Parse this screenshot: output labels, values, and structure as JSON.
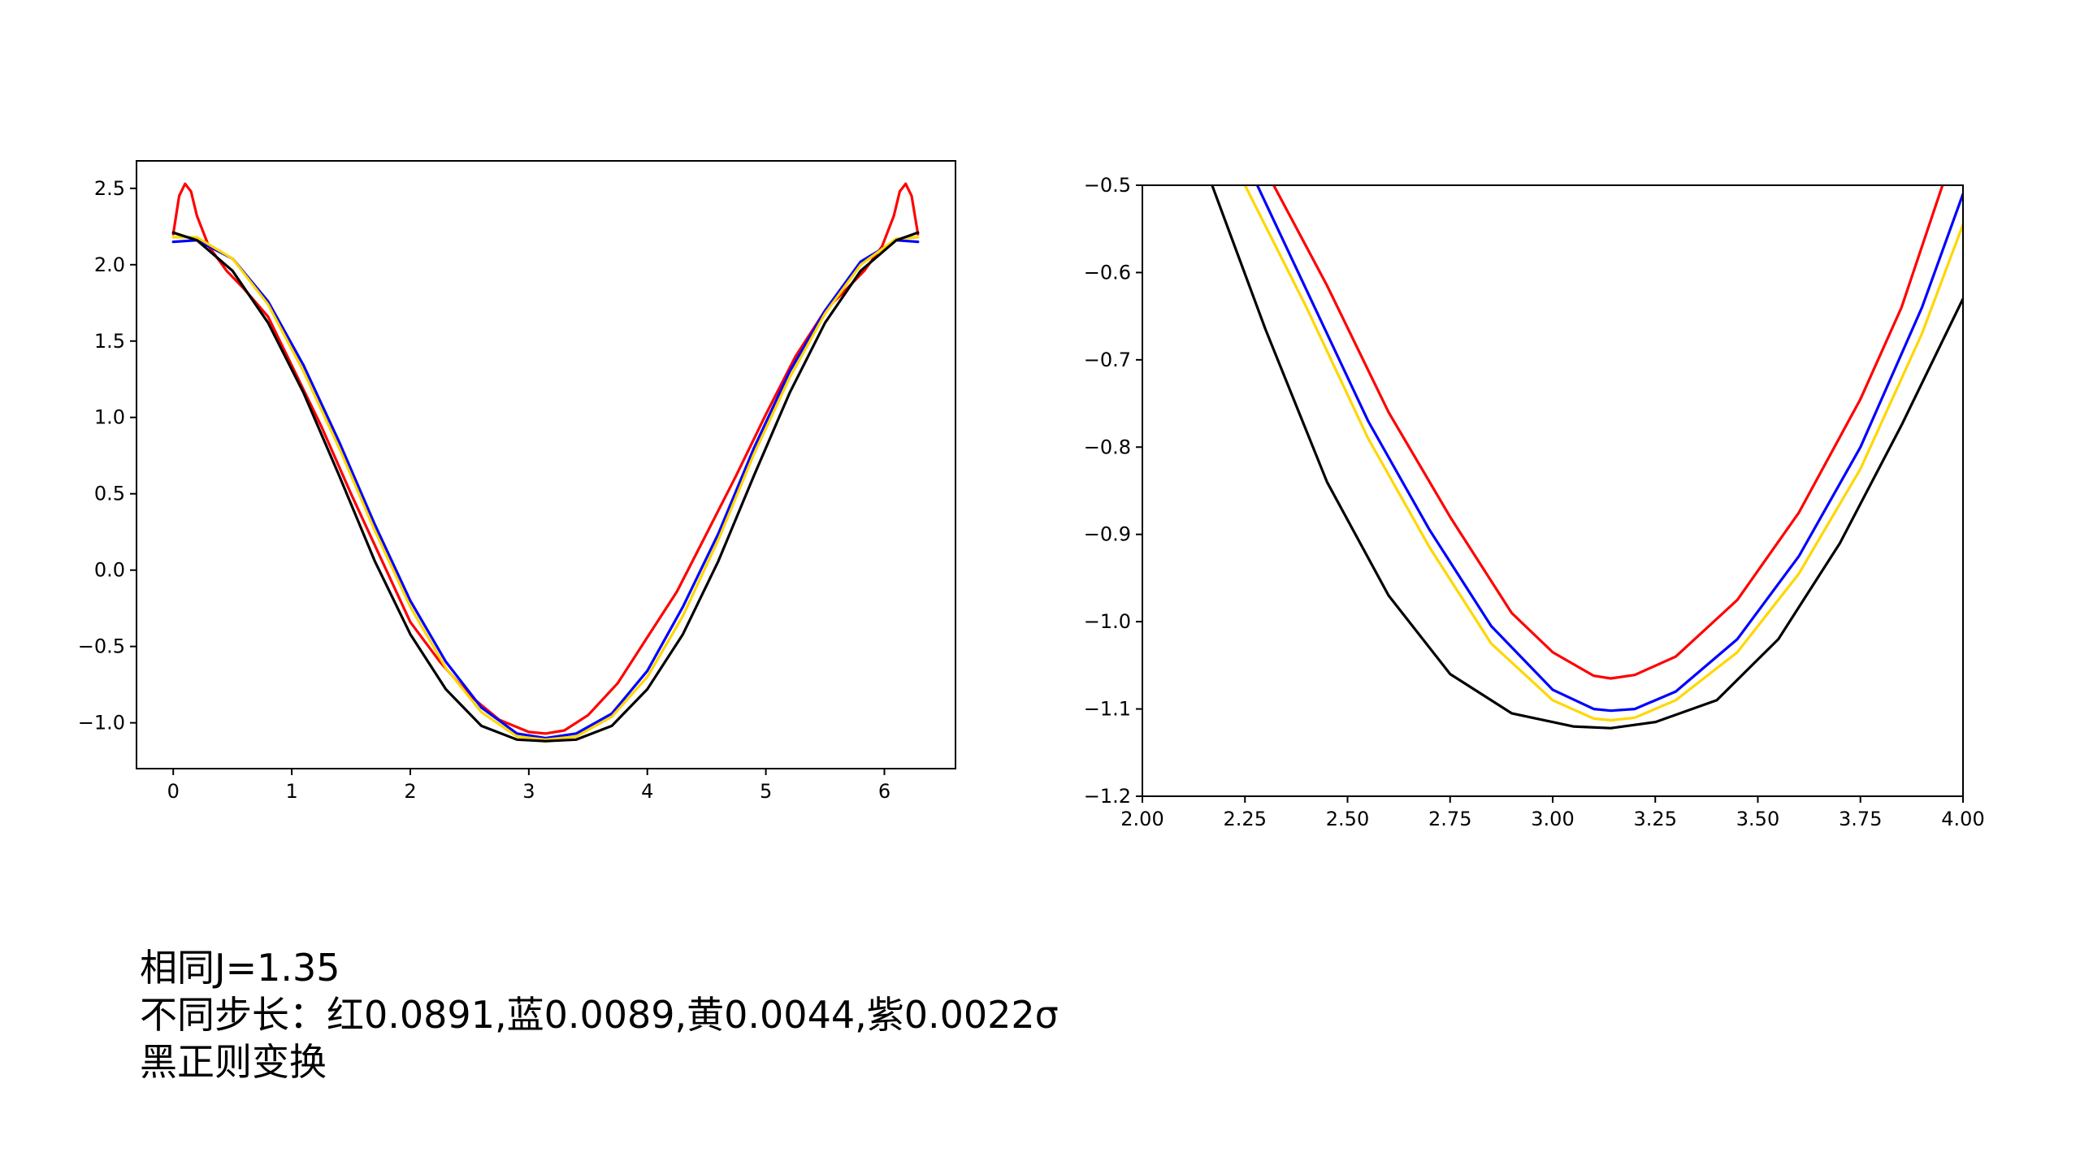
{
  "chart_data": [
    {
      "type": "line",
      "title": "",
      "xlabel": "",
      "ylabel": "",
      "xlim": [
        -0.31,
        6.6
      ],
      "ylim": [
        -1.3,
        2.68
      ],
      "xticks": [
        0,
        1,
        2,
        3,
        4,
        5,
        6
      ],
      "xtick_labels": [
        "0",
        "1",
        "2",
        "3",
        "4",
        "5",
        "6"
      ],
      "yticks": [
        -1.0,
        -0.5,
        0.0,
        0.5,
        1.0,
        1.5,
        2.0,
        2.5
      ],
      "ytick_labels": [
        "−1.0",
        "−0.5",
        "0.0",
        "0.5",
        "1.0",
        "1.5",
        "2.0",
        "2.5"
      ],
      "grid": false,
      "legend": "none",
      "series": [
        {
          "color": "#ff0000",
          "x": [
            0,
            0.05,
            0.1,
            0.15,
            0.2,
            0.3,
            0.45,
            0.6,
            0.8,
            1.0,
            1.25,
            1.5,
            1.75,
            2.0,
            2.25,
            2.5,
            2.75,
            3.0,
            3.1416,
            3.3,
            3.5,
            3.75,
            4.0,
            4.25,
            4.5,
            4.75,
            5.0,
            5.25,
            5.5,
            5.68,
            5.83,
            5.98,
            6.08,
            6.13,
            6.18,
            6.23,
            6.2832
          ],
          "y": [
            2.2,
            2.45,
            2.53,
            2.48,
            2.32,
            2.12,
            1.96,
            1.84,
            1.66,
            1.34,
            0.94,
            0.5,
            0.08,
            -0.34,
            -0.6,
            -0.82,
            -0.98,
            -1.06,
            -1.07,
            -1.05,
            -0.95,
            -0.74,
            -0.44,
            -0.14,
            0.24,
            0.62,
            1.02,
            1.4,
            1.7,
            1.84,
            1.96,
            2.12,
            2.32,
            2.48,
            2.53,
            2.45,
            2.2
          ]
        },
        {
          "color": "#0000ff",
          "x": [
            0,
            0.2,
            0.5,
            0.8,
            1.1,
            1.4,
            1.7,
            2.0,
            2.3,
            2.6,
            2.9,
            3.1416,
            3.4,
            3.7,
            4.0,
            4.3,
            4.6,
            4.9,
            5.2,
            5.5,
            5.8,
            6.1,
            6.2832
          ],
          "y": [
            2.15,
            2.16,
            2.04,
            1.76,
            1.34,
            0.84,
            0.3,
            -0.2,
            -0.6,
            -0.9,
            -1.07,
            -1.1,
            -1.07,
            -0.94,
            -0.66,
            -0.24,
            0.24,
            0.8,
            1.3,
            1.7,
            2.02,
            2.16,
            2.15
          ]
        },
        {
          "color": "#ffd700",
          "x": [
            0,
            0.2,
            0.5,
            0.8,
            1.1,
            1.4,
            1.7,
            2.0,
            2.3,
            2.6,
            2.9,
            3.1416,
            3.4,
            3.7,
            4.0,
            4.3,
            4.6,
            4.9,
            5.2,
            5.5,
            5.8,
            6.1,
            6.2832
          ],
          "y": [
            2.18,
            2.18,
            2.04,
            1.74,
            1.3,
            0.8,
            0.26,
            -0.24,
            -0.64,
            -0.93,
            -1.09,
            -1.11,
            -1.09,
            -0.96,
            -0.7,
            -0.3,
            0.2,
            0.76,
            1.26,
            1.68,
            2.0,
            2.17,
            2.18
          ]
        },
        {
          "color": "#000000",
          "x": [
            0,
            0.2,
            0.5,
            0.8,
            1.1,
            1.4,
            1.7,
            2.0,
            2.3,
            2.6,
            2.9,
            3.1416,
            3.4,
            3.7,
            4.0,
            4.3,
            4.6,
            4.9,
            5.2,
            5.5,
            5.8,
            6.1,
            6.2832
          ],
          "y": [
            2.21,
            2.16,
            1.96,
            1.62,
            1.16,
            0.62,
            0.06,
            -0.42,
            -0.78,
            -1.02,
            -1.11,
            -1.12,
            -1.11,
            -1.02,
            -0.78,
            -0.42,
            0.06,
            0.62,
            1.16,
            1.62,
            1.96,
            2.16,
            2.21
          ]
        }
      ]
    },
    {
      "type": "line",
      "title": "",
      "xlabel": "",
      "ylabel": "",
      "xlim": [
        2.0,
        4.0
      ],
      "ylim": [
        -1.2,
        -0.5
      ],
      "xticks": [
        2.0,
        2.25,
        2.5,
        2.75,
        3.0,
        3.25,
        3.5,
        3.75,
        4.0
      ],
      "xtick_labels": [
        "2.00",
        "2.25",
        "2.50",
        "2.75",
        "3.00",
        "3.25",
        "3.50",
        "3.75",
        "4.00"
      ],
      "yticks": [
        -1.2,
        -1.1,
        -1.0,
        -0.9,
        -0.8,
        -0.7,
        -0.6,
        -0.5
      ],
      "ytick_labels": [
        "−1.2",
        "−1.1",
        "−1.0",
        "−0.9",
        "−0.8",
        "−0.7",
        "−0.6",
        "−0.5"
      ],
      "grid": false,
      "legend": "none",
      "series": [
        {
          "color": "#ff0000",
          "x": [
            2.32,
            2.45,
            2.6,
            2.75,
            2.9,
            3.0,
            3.1,
            3.1416,
            3.2,
            3.3,
            3.45,
            3.6,
            3.75,
            3.85,
            3.95
          ],
          "y": [
            -0.5,
            -0.615,
            -0.76,
            -0.88,
            -0.99,
            -1.035,
            -1.062,
            -1.065,
            -1.061,
            -1.04,
            -0.975,
            -0.875,
            -0.745,
            -0.64,
            -0.5
          ]
        },
        {
          "color": "#0000ff",
          "x": [
            2.28,
            2.4,
            2.55,
            2.7,
            2.85,
            3.0,
            3.1,
            3.1416,
            3.2,
            3.3,
            3.45,
            3.6,
            3.75,
            3.9,
            4.0
          ],
          "y": [
            -0.5,
            -0.62,
            -0.77,
            -0.895,
            -1.005,
            -1.078,
            -1.1,
            -1.102,
            -1.1,
            -1.08,
            -1.02,
            -0.925,
            -0.8,
            -0.64,
            -0.51
          ]
        },
        {
          "color": "#ffd700",
          "x": [
            2.25,
            2.4,
            2.55,
            2.7,
            2.85,
            3.0,
            3.1,
            3.1416,
            3.2,
            3.3,
            3.45,
            3.6,
            3.75,
            3.9,
            4.0
          ],
          "y": [
            -0.5,
            -0.64,
            -0.79,
            -0.915,
            -1.025,
            -1.09,
            -1.111,
            -1.113,
            -1.11,
            -1.09,
            -1.035,
            -0.945,
            -0.825,
            -0.67,
            -0.545
          ]
        },
        {
          "color": "#000000",
          "x": [
            2.17,
            2.3,
            2.45,
            2.6,
            2.75,
            2.9,
            3.05,
            3.1416,
            3.25,
            3.4,
            3.55,
            3.7,
            3.85,
            4.0
          ],
          "y": [
            -0.5,
            -0.665,
            -0.84,
            -0.97,
            -1.06,
            -1.105,
            -1.12,
            -1.122,
            -1.115,
            -1.09,
            -1.02,
            -0.91,
            -0.775,
            -0.63
          ]
        }
      ]
    }
  ],
  "caption": {
    "line1": "相同J=1.35",
    "line2": "不同步长：红0.0891,蓝0.0089,黄0.0044,紫0.0022σ",
    "line3": "黑正则变换"
  }
}
